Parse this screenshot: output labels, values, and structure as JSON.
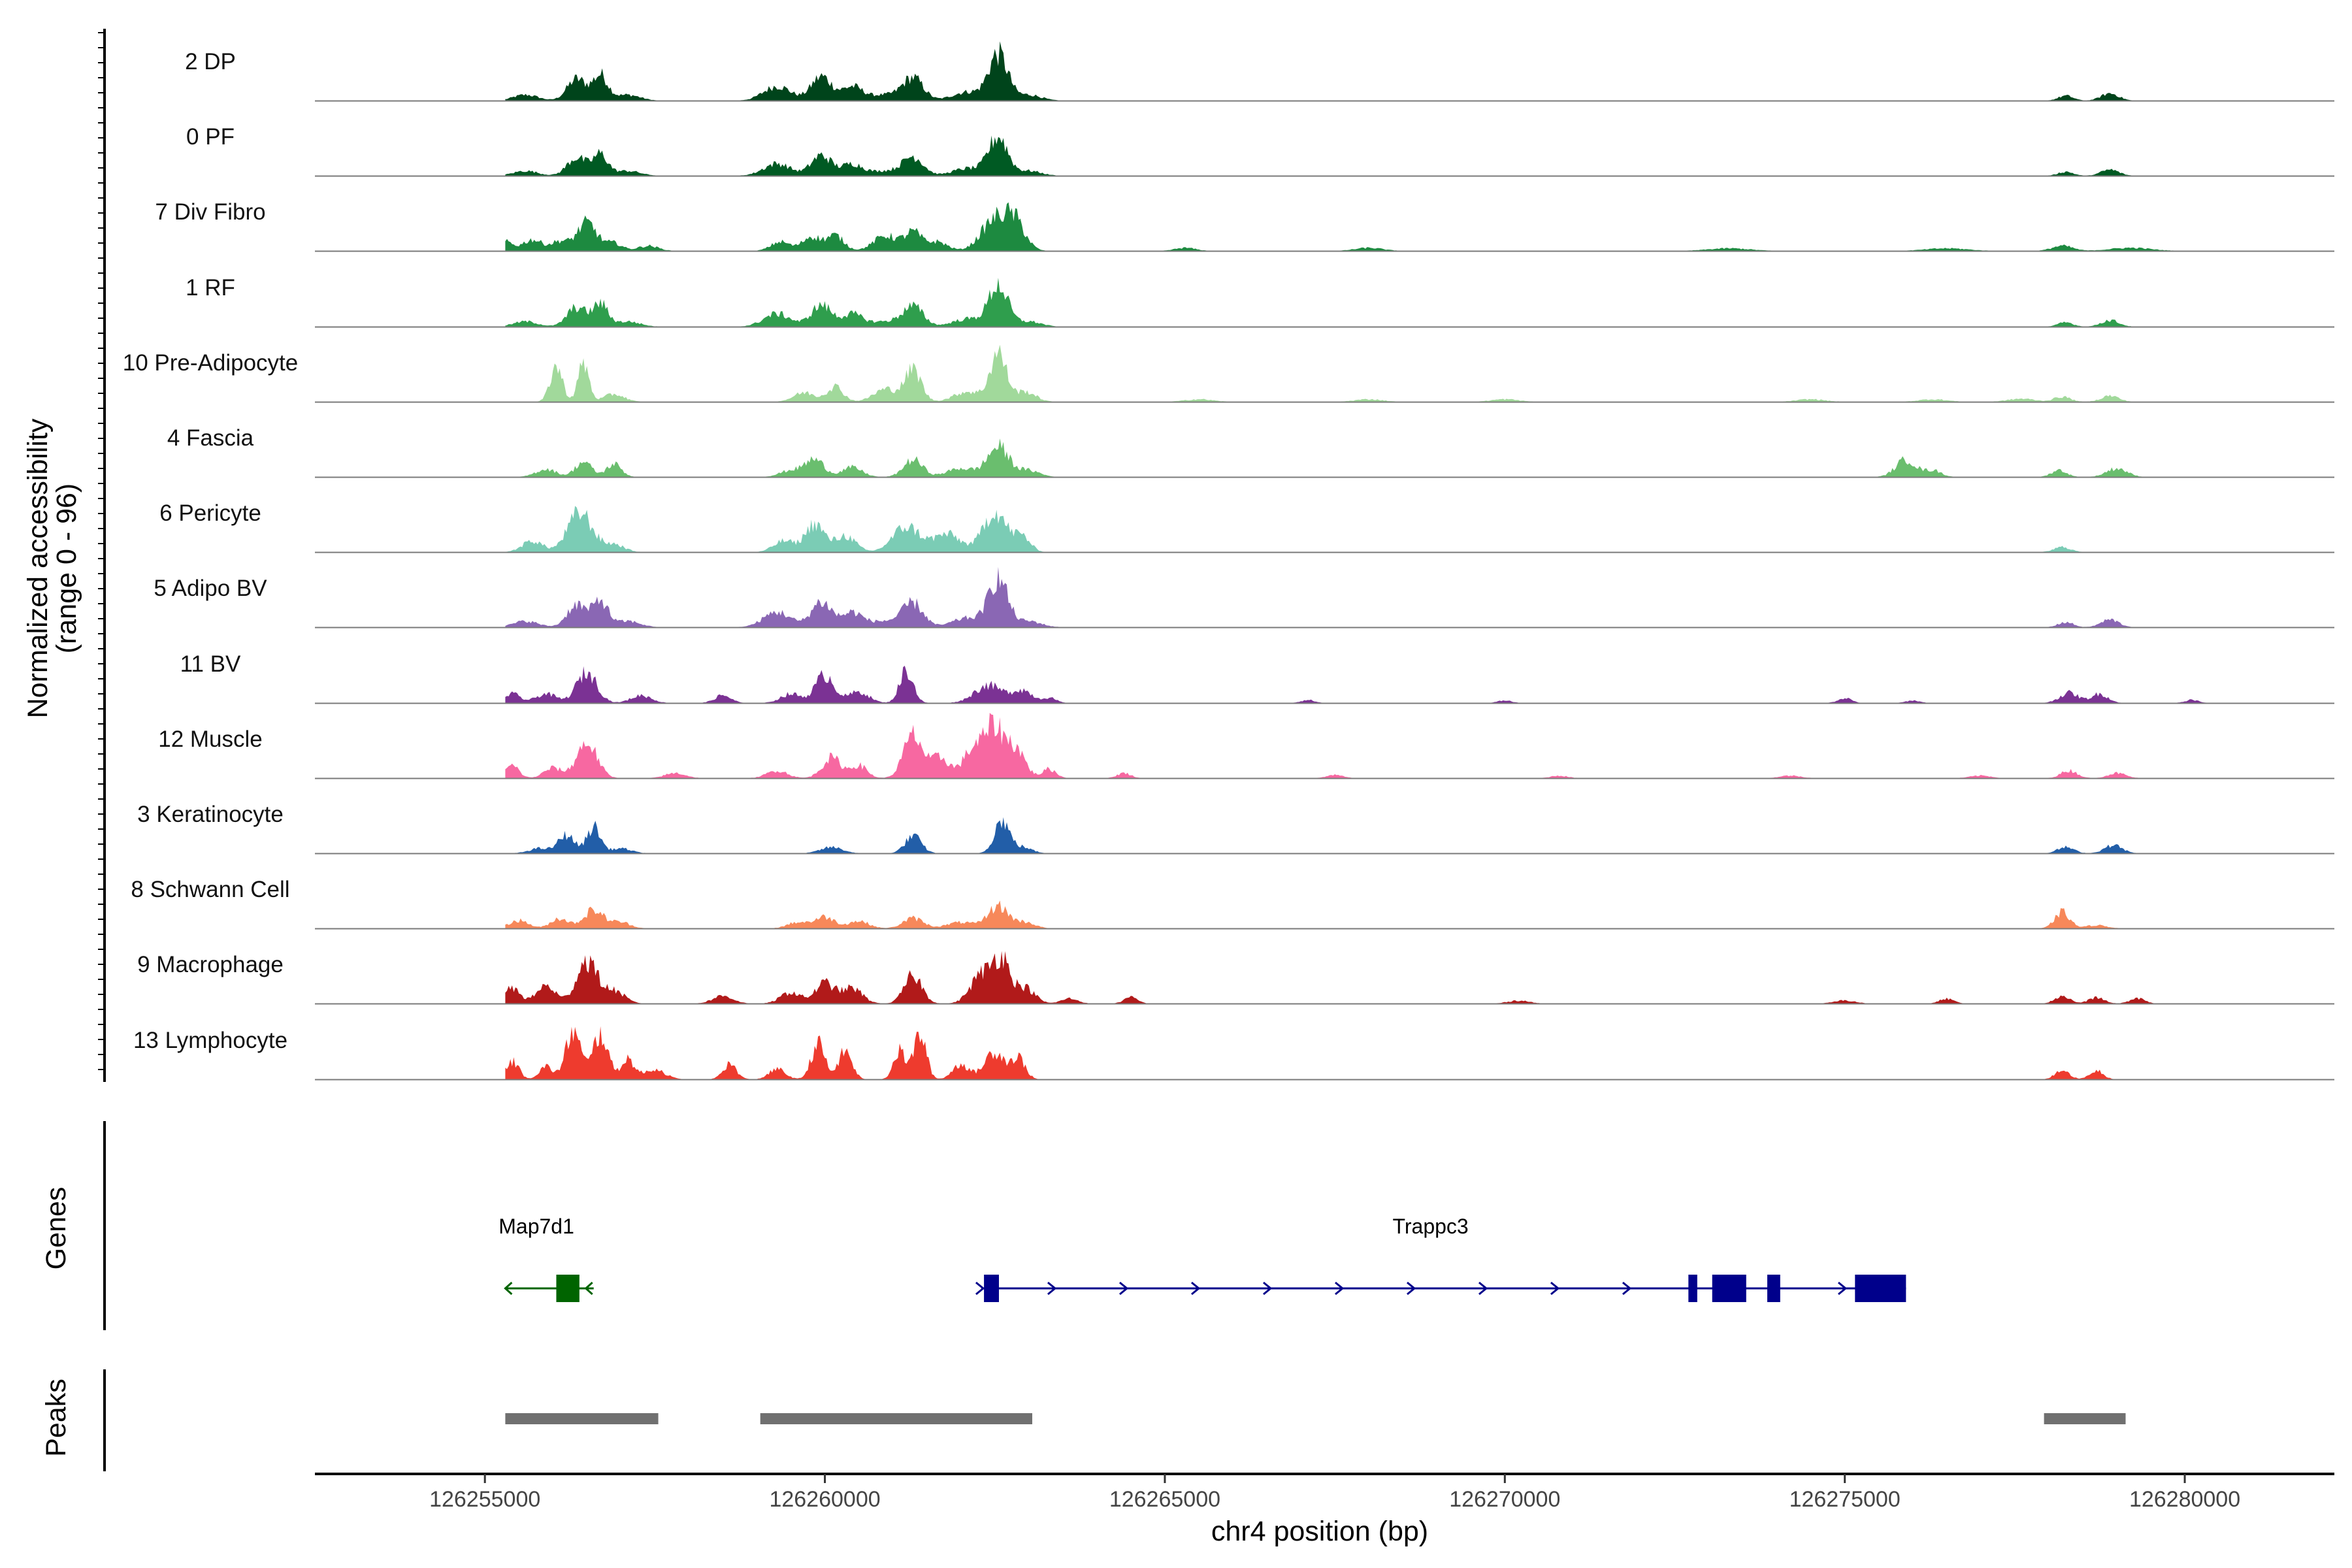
{
  "chart_data": {
    "type": "area",
    "title": "",
    "ylabel": "Normalized accessibility",
    "ylabel_range": "(range 0 - 96)",
    "ylim": [
      0,
      96
    ],
    "xlabel": "chr4 position (bp)",
    "xlim": [
      126252500,
      126282200
    ],
    "x_ticks": [
      126255000,
      126260000,
      126265000,
      126270000,
      126275000,
      126280000
    ],
    "x_tick_labels": [
      "126255000",
      "126260000",
      "126265000",
      "126270000",
      "126275000",
      "126280000"
    ],
    "track_order_note": "tracks listed top to bottom",
    "tracks": [
      {
        "name": "2 DP",
        "color": "#00441B",
        "scale": 0.95,
        "profile": "fibro"
      },
      {
        "name": "0 PF",
        "color": "#005A23",
        "scale": 0.8,
        "profile": "fibro"
      },
      {
        "name": "7 Div Fibro",
        "color": "#1D8A40",
        "scale": 1.0,
        "profile": "divfibro"
      },
      {
        "name": "1 RF",
        "color": "#2F9E4D",
        "scale": 0.85,
        "profile": "fibro"
      },
      {
        "name": "10 Pre-Adipocyte",
        "color": "#A1D99B",
        "scale": 1.0,
        "profile": "preadipo"
      },
      {
        "name": "4 Fascia",
        "color": "#6ABE6E",
        "scale": 0.85,
        "profile": "fascia"
      },
      {
        "name": "6 Pericyte",
        "color": "#7BCCB5",
        "scale": 1.0,
        "profile": "pericyte"
      },
      {
        "name": "5 Adipo BV",
        "color": "#8A67B4",
        "scale": 1.0,
        "profile": "fibro"
      },
      {
        "name": "11 BV",
        "color": "#7B3294",
        "scale": 1.0,
        "profile": "bv"
      },
      {
        "name": "12 Muscle",
        "color": "#F768A1",
        "scale": 1.0,
        "profile": "muscle"
      },
      {
        "name": "3 Keratinocyte",
        "color": "#225EA8",
        "scale": 0.8,
        "profile": "kera"
      },
      {
        "name": "8 Schwann Cell",
        "color": "#F7885A",
        "scale": 0.8,
        "profile": "schwann"
      },
      {
        "name": "9 Macrophage",
        "color": "#B11A1A",
        "scale": 1.0,
        "profile": "macro"
      },
      {
        "name": "13 Lymphocyte",
        "color": "#EE3B2E",
        "scale": 1.0,
        "profile": "lympho"
      }
    ],
    "peak_shapes": {
      "fibro": [
        [
          126255600,
          0.12,
          180
        ],
        [
          126256350,
          0.45,
          140
        ],
        [
          126256700,
          0.52,
          110
        ],
        [
          126257100,
          0.12,
          180
        ],
        [
          126259300,
          0.3,
          200
        ],
        [
          126259950,
          0.5,
          150
        ],
        [
          126260400,
          0.28,
          150
        ],
        [
          126260900,
          0.12,
          250
        ],
        [
          126261300,
          0.45,
          150
        ],
        [
          126262100,
          0.18,
          220
        ],
        [
          126262550,
          0.95,
          140
        ],
        [
          126263000,
          0.12,
          180
        ],
        [
          126278250,
          0.1,
          110
        ],
        [
          126278900,
          0.15,
          130
        ]
      ],
      "divfibro": [
        [
          126255300,
          0.18,
          100
        ],
        [
          126255700,
          0.22,
          150
        ],
        [
          126256100,
          0.18,
          120
        ],
        [
          126256500,
          0.55,
          150
        ],
        [
          126256900,
          0.15,
          120
        ],
        [
          126257400,
          0.1,
          150
        ],
        [
          126259350,
          0.18,
          140
        ],
        [
          126259800,
          0.28,
          130
        ],
        [
          126260150,
          0.3,
          130
        ],
        [
          126260900,
          0.3,
          180
        ],
        [
          126261300,
          0.35,
          120
        ],
        [
          126261650,
          0.18,
          150
        ],
        [
          126262500,
          0.6,
          200
        ],
        [
          126262800,
          0.5,
          150
        ],
        [
          126265300,
          0.06,
          150
        ],
        [
          126268000,
          0.06,
          200
        ],
        [
          126273300,
          0.05,
          300
        ],
        [
          126276500,
          0.05,
          300
        ],
        [
          126278200,
          0.1,
          150
        ],
        [
          126279200,
          0.06,
          300
        ]
      ],
      "preadipo": [
        [
          126256050,
          0.7,
          90
        ],
        [
          126256450,
          0.75,
          80
        ],
        [
          126256900,
          0.15,
          150
        ],
        [
          126259700,
          0.18,
          160
        ],
        [
          126260150,
          0.3,
          120
        ],
        [
          126260900,
          0.25,
          180
        ],
        [
          126261300,
          0.62,
          120
        ],
        [
          126262100,
          0.2,
          200
        ],
        [
          126262550,
          0.95,
          120
        ],
        [
          126262950,
          0.2,
          150
        ],
        [
          126265500,
          0.05,
          200
        ],
        [
          126268000,
          0.05,
          200
        ],
        [
          126270000,
          0.05,
          200
        ],
        [
          126274500,
          0.05,
          200
        ],
        [
          126276300,
          0.05,
          200
        ],
        [
          126277600,
          0.06,
          200
        ],
        [
          126278200,
          0.1,
          120
        ],
        [
          126278900,
          0.12,
          130
        ]
      ],
      "fascia": [
        [
          126255900,
          0.18,
          150
        ],
        [
          126256450,
          0.35,
          120
        ],
        [
          126256900,
          0.3,
          110
        ],
        [
          126259500,
          0.15,
          160
        ],
        [
          126259850,
          0.4,
          140
        ],
        [
          126260400,
          0.22,
          150
        ],
        [
          126261300,
          0.4,
          140
        ],
        [
          126262000,
          0.2,
          200
        ],
        [
          126262550,
          0.7,
          160
        ],
        [
          126263000,
          0.15,
          160
        ],
        [
          126275900,
          0.4,
          150
        ],
        [
          126276300,
          0.15,
          120
        ],
        [
          126278150,
          0.16,
          110
        ],
        [
          126279000,
          0.2,
          150
        ]
      ],
      "pericyte": [
        [
          126255700,
          0.22,
          150
        ],
        [
          126256400,
          0.78,
          180
        ],
        [
          126256900,
          0.15,
          150
        ],
        [
          126259400,
          0.22,
          150
        ],
        [
          126259850,
          0.55,
          140
        ],
        [
          126260300,
          0.32,
          150
        ],
        [
          126261200,
          0.5,
          200
        ],
        [
          126261800,
          0.35,
          200
        ],
        [
          126262500,
          0.8,
          170
        ],
        [
          126262900,
          0.3,
          120
        ],
        [
          126278200,
          0.1,
          120
        ]
      ],
      "bv": [
        [
          126255400,
          0.18,
          120
        ],
        [
          126255900,
          0.18,
          150
        ],
        [
          126256500,
          0.6,
          150
        ],
        [
          126257300,
          0.15,
          150
        ],
        [
          126258500,
          0.15,
          120
        ],
        [
          126259500,
          0.18,
          150
        ],
        [
          126260000,
          0.55,
          140
        ],
        [
          126260500,
          0.22,
          150
        ],
        [
          126261200,
          0.65,
          100
        ],
        [
          126262400,
          0.35,
          200
        ],
        [
          126262900,
          0.25,
          150
        ],
        [
          126263300,
          0.1,
          100
        ],
        [
          126267100,
          0.06,
          100
        ],
        [
          126270000,
          0.05,
          100
        ],
        [
          126275000,
          0.1,
          100
        ],
        [
          126276000,
          0.05,
          100
        ],
        [
          126278300,
          0.2,
          140
        ],
        [
          126278750,
          0.18,
          120
        ],
        [
          126280100,
          0.06,
          100
        ]
      ],
      "muscle": [
        [
          126255400,
          0.25,
          100
        ],
        [
          126256000,
          0.2,
          130
        ],
        [
          126256500,
          0.7,
          150
        ],
        [
          126257800,
          0.1,
          150
        ],
        [
          126259300,
          0.15,
          150
        ],
        [
          126260100,
          0.4,
          140
        ],
        [
          126260500,
          0.25,
          120
        ],
        [
          126261300,
          0.85,
          140
        ],
        [
          126261700,
          0.4,
          130
        ],
        [
          126262200,
          0.6,
          160
        ],
        [
          126262500,
          0.9,
          130
        ],
        [
          126262800,
          0.6,
          140
        ],
        [
          126263300,
          0.18,
          100
        ],
        [
          126264400,
          0.1,
          100
        ],
        [
          126267500,
          0.06,
          120
        ],
        [
          126270800,
          0.05,
          120
        ],
        [
          126274200,
          0.05,
          150
        ],
        [
          126277000,
          0.05,
          150
        ],
        [
          126278300,
          0.15,
          120
        ],
        [
          126279000,
          0.1,
          130
        ]
      ],
      "kera": [
        [
          126255800,
          0.12,
          150
        ],
        [
          126256200,
          0.45,
          120
        ],
        [
          126256600,
          0.65,
          100
        ],
        [
          126257000,
          0.12,
          150
        ],
        [
          126260100,
          0.15,
          160
        ],
        [
          126261300,
          0.42,
          120
        ],
        [
          126262600,
          0.8,
          110
        ],
        [
          126262900,
          0.15,
          140
        ],
        [
          126278250,
          0.15,
          120
        ],
        [
          126278950,
          0.2,
          130
        ]
      ],
      "schwann": [
        [
          126255500,
          0.2,
          140
        ],
        [
          126256100,
          0.25,
          130
        ],
        [
          126256600,
          0.45,
          150
        ],
        [
          126257000,
          0.15,
          140
        ],
        [
          126259600,
          0.15,
          150
        ],
        [
          126260000,
          0.28,
          150
        ],
        [
          126260500,
          0.18,
          150
        ],
        [
          126261300,
          0.25,
          150
        ],
        [
          126262000,
          0.15,
          200
        ],
        [
          126262550,
          0.55,
          150
        ],
        [
          126262950,
          0.15,
          140
        ],
        [
          126278200,
          0.4,
          110
        ],
        [
          126278700,
          0.08,
          150
        ]
      ],
      "macro": [
        [
          126255400,
          0.3,
          120
        ],
        [
          126255900,
          0.35,
          140
        ],
        [
          126256500,
          0.85,
          150
        ],
        [
          126256900,
          0.25,
          150
        ],
        [
          126258500,
          0.15,
          150
        ],
        [
          126259500,
          0.22,
          150
        ],
        [
          126260000,
          0.4,
          140
        ],
        [
          126260400,
          0.3,
          150
        ],
        [
          126261300,
          0.55,
          130
        ],
        [
          126262300,
          0.55,
          160
        ],
        [
          126262600,
          0.85,
          130
        ],
        [
          126262950,
          0.3,
          140
        ],
        [
          126263600,
          0.1,
          120
        ],
        [
          126264500,
          0.12,
          100
        ],
        [
          126270200,
          0.06,
          150
        ],
        [
          126275000,
          0.06,
          150
        ],
        [
          126276500,
          0.1,
          100
        ],
        [
          126278200,
          0.15,
          110
        ],
        [
          126278700,
          0.12,
          110
        ],
        [
          126279300,
          0.1,
          110
        ]
      ],
      "lympho": [
        [
          126255400,
          0.35,
          100
        ],
        [
          126255900,
          0.25,
          100
        ],
        [
          126256300,
          0.95,
          110
        ],
        [
          126256700,
          0.9,
          110
        ],
        [
          126257100,
          0.4,
          100
        ],
        [
          126257500,
          0.2,
          150
        ],
        [
          126258600,
          0.3,
          100
        ],
        [
          126259300,
          0.2,
          120
        ],
        [
          126259900,
          0.7,
          100
        ],
        [
          126260300,
          0.55,
          100
        ],
        [
          126261100,
          0.55,
          90
        ],
        [
          126261400,
          0.9,
          90
        ],
        [
          126262000,
          0.3,
          120
        ],
        [
          126262500,
          0.55,
          150
        ],
        [
          126262850,
          0.4,
          100
        ],
        [
          126278200,
          0.2,
          100
        ],
        [
          126278700,
          0.18,
          100
        ]
      ]
    },
    "genes_track_label": "Genes",
    "genes": [
      {
        "name": "Map7d1",
        "strand": "-",
        "start": 126255300,
        "end": 126256600,
        "color": "#006400",
        "exons": [
          [
            126256050,
            126256390
          ]
        ]
      },
      {
        "name": "Trappc3",
        "strand": "+",
        "start": 126262300,
        "end": 126275900,
        "color": "#00008B",
        "exons": [
          [
            126262340,
            126262560
          ],
          [
            126272700,
            126272830
          ],
          [
            126273050,
            126273550
          ],
          [
            126273860,
            126274050
          ],
          [
            126275150,
            126275900
          ]
        ]
      }
    ],
    "peaks_track_label": "Peaks",
    "peaks": [
      [
        126255300,
        126257550
      ],
      [
        126259050,
        126263050
      ],
      [
        126277930,
        126279130
      ]
    ],
    "peak_color": "#707070"
  }
}
